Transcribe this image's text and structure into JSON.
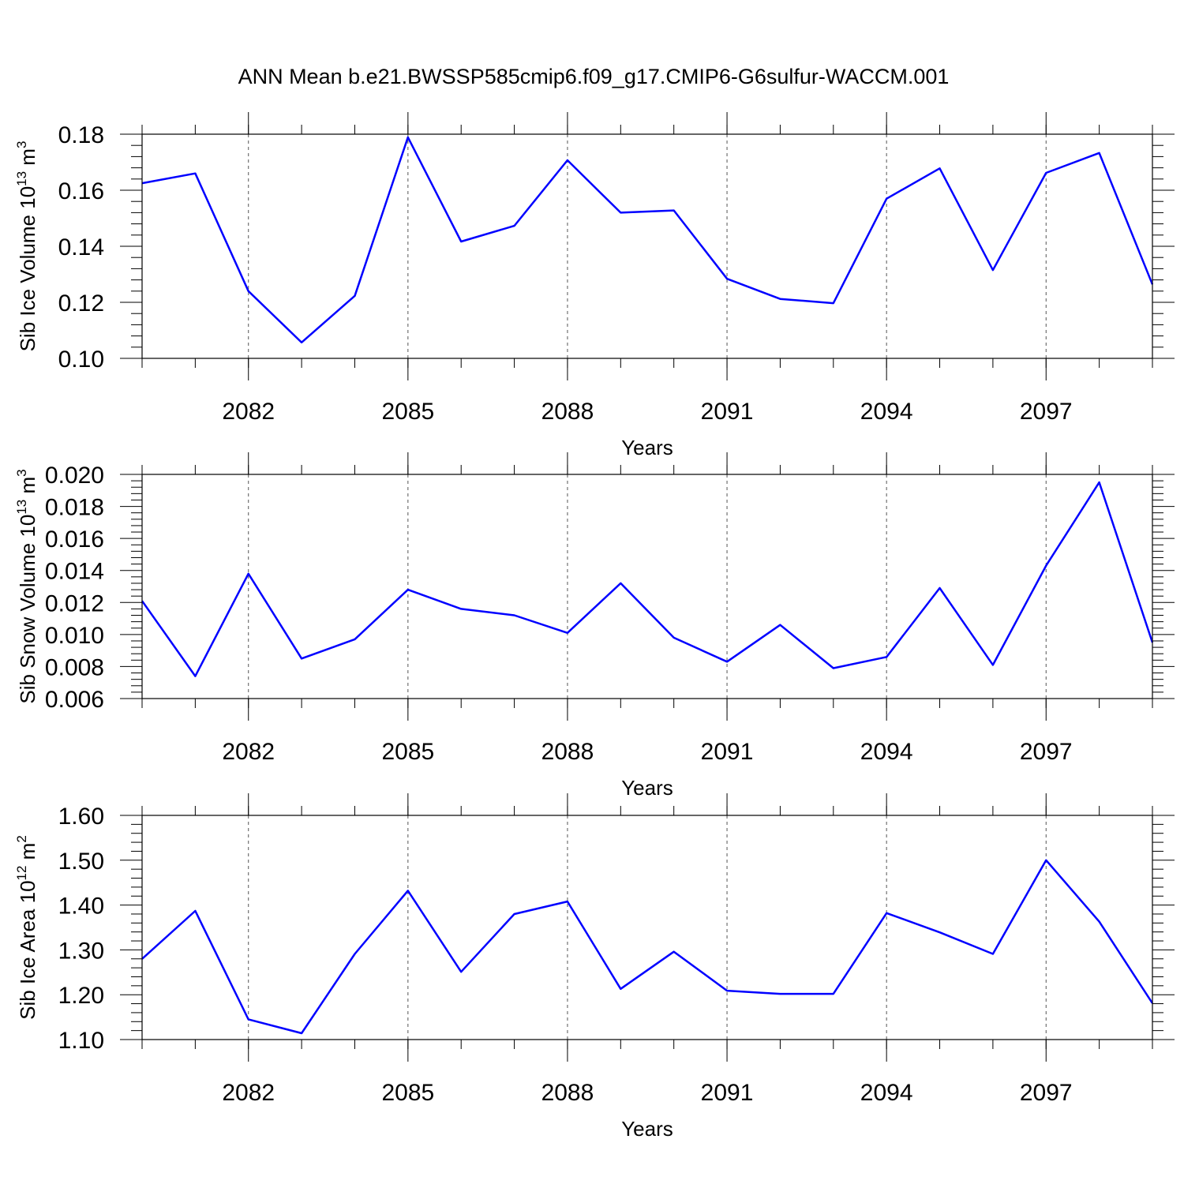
{
  "title": "ANN Mean b.e21.BWSSP585cmip6.f09_g17.CMIP6-G6sulfur-WACCM.001",
  "colors": {
    "line": "#0000ff",
    "axis": "#000000",
    "grid": "#555555"
  },
  "chart_data": [
    {
      "type": "line",
      "xlabel": "Years",
      "ylabel": "Sib Ice Volume 10",
      "ylabel_exp": "13",
      "ylabel_unit": " m",
      "ylabel_unit_exp": "3",
      "xlim": [
        2080,
        2099
      ],
      "ylim": [
        0.1,
        0.18
      ],
      "xticks": [
        2082,
        2085,
        2088,
        2091,
        2094,
        2097
      ],
      "yticks": [
        "0.10",
        "0.12",
        "0.14",
        "0.16",
        "0.18"
      ],
      "grid": "vertical dashed at x ticks",
      "x": [
        2080,
        2081,
        2082,
        2083,
        2084,
        2085,
        2086,
        2087,
        2088,
        2089,
        2090,
        2091,
        2092,
        2093,
        2094,
        2095,
        2096,
        2097,
        2098,
        2099
      ],
      "y": [
        0.1625,
        0.166,
        0.124,
        0.1057,
        0.1223,
        0.1789,
        0.1417,
        0.1473,
        0.1707,
        0.152,
        0.1528,
        0.1284,
        0.1212,
        0.1197,
        0.157,
        0.1678,
        0.1315,
        0.1662,
        0.1733,
        0.1264
      ]
    },
    {
      "type": "line",
      "xlabel": "Years",
      "ylabel": "Sib Snow Volume 10",
      "ylabel_exp": "13",
      "ylabel_unit": " m",
      "ylabel_unit_exp": "3",
      "xlim": [
        2080,
        2099
      ],
      "ylim": [
        0.006,
        0.02
      ],
      "xticks": [
        2082,
        2085,
        2088,
        2091,
        2094,
        2097
      ],
      "yticks": [
        "0.006",
        "0.008",
        "0.010",
        "0.012",
        "0.014",
        "0.016",
        "0.018",
        "0.020"
      ],
      "grid": "vertical dashed at x ticks",
      "x": [
        2080,
        2081,
        2082,
        2083,
        2084,
        2085,
        2086,
        2087,
        2088,
        2089,
        2090,
        2091,
        2092,
        2093,
        2094,
        2095,
        2096,
        2097,
        2098,
        2099
      ],
      "y": [
        0.0121,
        0.0074,
        0.0138,
        0.0085,
        0.0097,
        0.0128,
        0.0116,
        0.0112,
        0.0101,
        0.0132,
        0.0098,
        0.0083,
        0.0106,
        0.0079,
        0.0086,
        0.0129,
        0.0081,
        0.0143,
        0.0195,
        0.0095
      ]
    },
    {
      "type": "line",
      "xlabel": "Years",
      "ylabel": "Sib Ice Area 10",
      "ylabel_exp": "12",
      "ylabel_unit": " m",
      "ylabel_unit_exp": "2",
      "xlim": [
        2080,
        2099
      ],
      "ylim": [
        1.1,
        1.6
      ],
      "xticks": [
        2082,
        2085,
        2088,
        2091,
        2094,
        2097
      ],
      "yticks": [
        "1.10",
        "1.20",
        "1.30",
        "1.40",
        "1.50",
        "1.60"
      ],
      "grid": "vertical dashed at x ticks",
      "x": [
        2080,
        2081,
        2082,
        2083,
        2084,
        2085,
        2086,
        2087,
        2088,
        2089,
        2090,
        2091,
        2092,
        2093,
        2094,
        2095,
        2096,
        2097,
        2098,
        2099
      ],
      "y": [
        1.28,
        1.387,
        1.145,
        1.114,
        1.291,
        1.432,
        1.251,
        1.38,
        1.408,
        1.213,
        1.296,
        1.209,
        1.202,
        1.202,
        1.382,
        1.339,
        1.291,
        1.5,
        1.363,
        1.181
      ]
    }
  ]
}
